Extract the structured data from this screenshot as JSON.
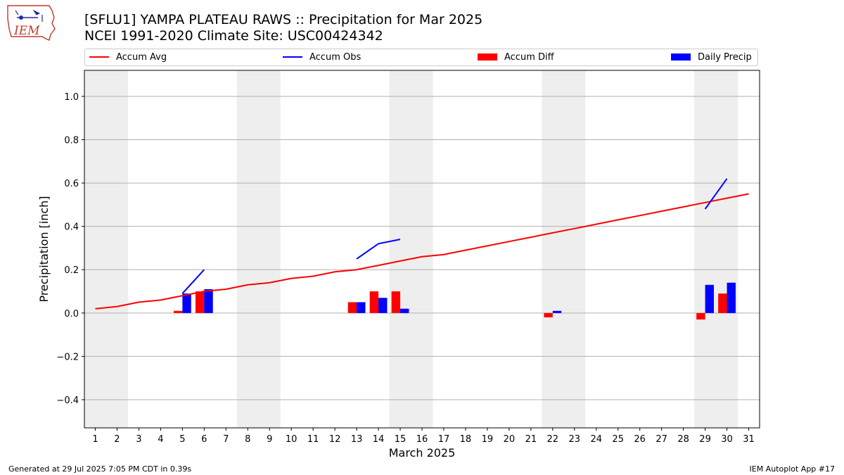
{
  "logo": {
    "text": "IEM",
    "colors": {
      "outline": "#c0392b",
      "symbol": "#1f2f9c"
    }
  },
  "title_line1": "[SFLU1] YAMPA PLATEAU RAWS :: Precipitation for Mar 2025",
  "title_line2": "NCEI 1991-2020 Climate Site: USC00424342",
  "footer_left": "Generated at 29 Jul 2025 7:05 PM CDT in 0.39s",
  "footer_right": "IEM Autoplot App #17",
  "chart_data": {
    "type": "bar",
    "xlabel": "March 2025",
    "ylabel": "Precipitation [inch]",
    "xlim": [
      0.5,
      31.5
    ],
    "ylim": [
      -0.53,
      1.12
    ],
    "yticks": [
      -0.4,
      -0.2,
      0.0,
      0.2,
      0.4,
      0.6,
      0.8,
      1.0
    ],
    "ytick_labels": [
      "−0.4",
      "−0.2",
      "0.0",
      "0.2",
      "0.4",
      "0.6",
      "0.8",
      "1.0"
    ],
    "x": [
      1,
      2,
      3,
      4,
      5,
      6,
      7,
      8,
      9,
      10,
      11,
      12,
      13,
      14,
      15,
      16,
      17,
      18,
      19,
      20,
      21,
      22,
      23,
      24,
      25,
      26,
      27,
      28,
      29,
      30,
      31
    ],
    "grid": "horizontal",
    "legend_position": "top",
    "weekend_shading": [
      [
        1,
        2
      ],
      [
        8,
        9
      ],
      [
        15,
        16
      ],
      [
        22,
        23
      ],
      [
        29,
        30
      ]
    ],
    "series": [
      {
        "name": "Accum Avg",
        "kind": "line",
        "color": "#ff0000",
        "values": [
          0.02,
          0.03,
          0.05,
          0.06,
          0.08,
          0.1,
          0.11,
          0.13,
          0.14,
          0.16,
          0.17,
          0.19,
          0.2,
          0.22,
          0.24,
          0.26,
          0.27,
          0.29,
          0.31,
          0.33,
          0.35,
          0.37,
          0.39,
          0.41,
          0.43,
          0.45,
          0.47,
          0.49,
          0.51,
          0.53,
          0.55
        ]
      },
      {
        "name": "Accum Obs",
        "kind": "line",
        "color": "#0000ff",
        "segments": [
          {
            "x": [
              5,
              6
            ],
            "values": [
              0.09,
              0.2
            ]
          },
          {
            "x": [
              13,
              14,
              15
            ],
            "values": [
              0.25,
              0.32,
              0.34
            ]
          },
          {
            "x": [
              29,
              30
            ],
            "values": [
              0.48,
              0.62
            ]
          }
        ]
      },
      {
        "name": "Accum Diff",
        "kind": "bar",
        "color": "#ff0000",
        "offset": "left",
        "x": [
          5,
          6,
          13,
          14,
          15,
          22,
          29,
          30
        ],
        "values": [
          0.01,
          0.1,
          0.05,
          0.1,
          0.1,
          -0.02,
          -0.03,
          0.09
        ]
      },
      {
        "name": "Daily Precip",
        "kind": "bar",
        "color": "#0000ff",
        "offset": "right",
        "x": [
          5,
          6,
          13,
          14,
          15,
          22,
          29,
          30
        ],
        "values": [
          0.09,
          0.11,
          0.05,
          0.07,
          0.02,
          0.01,
          0.13,
          0.14
        ]
      }
    ]
  }
}
